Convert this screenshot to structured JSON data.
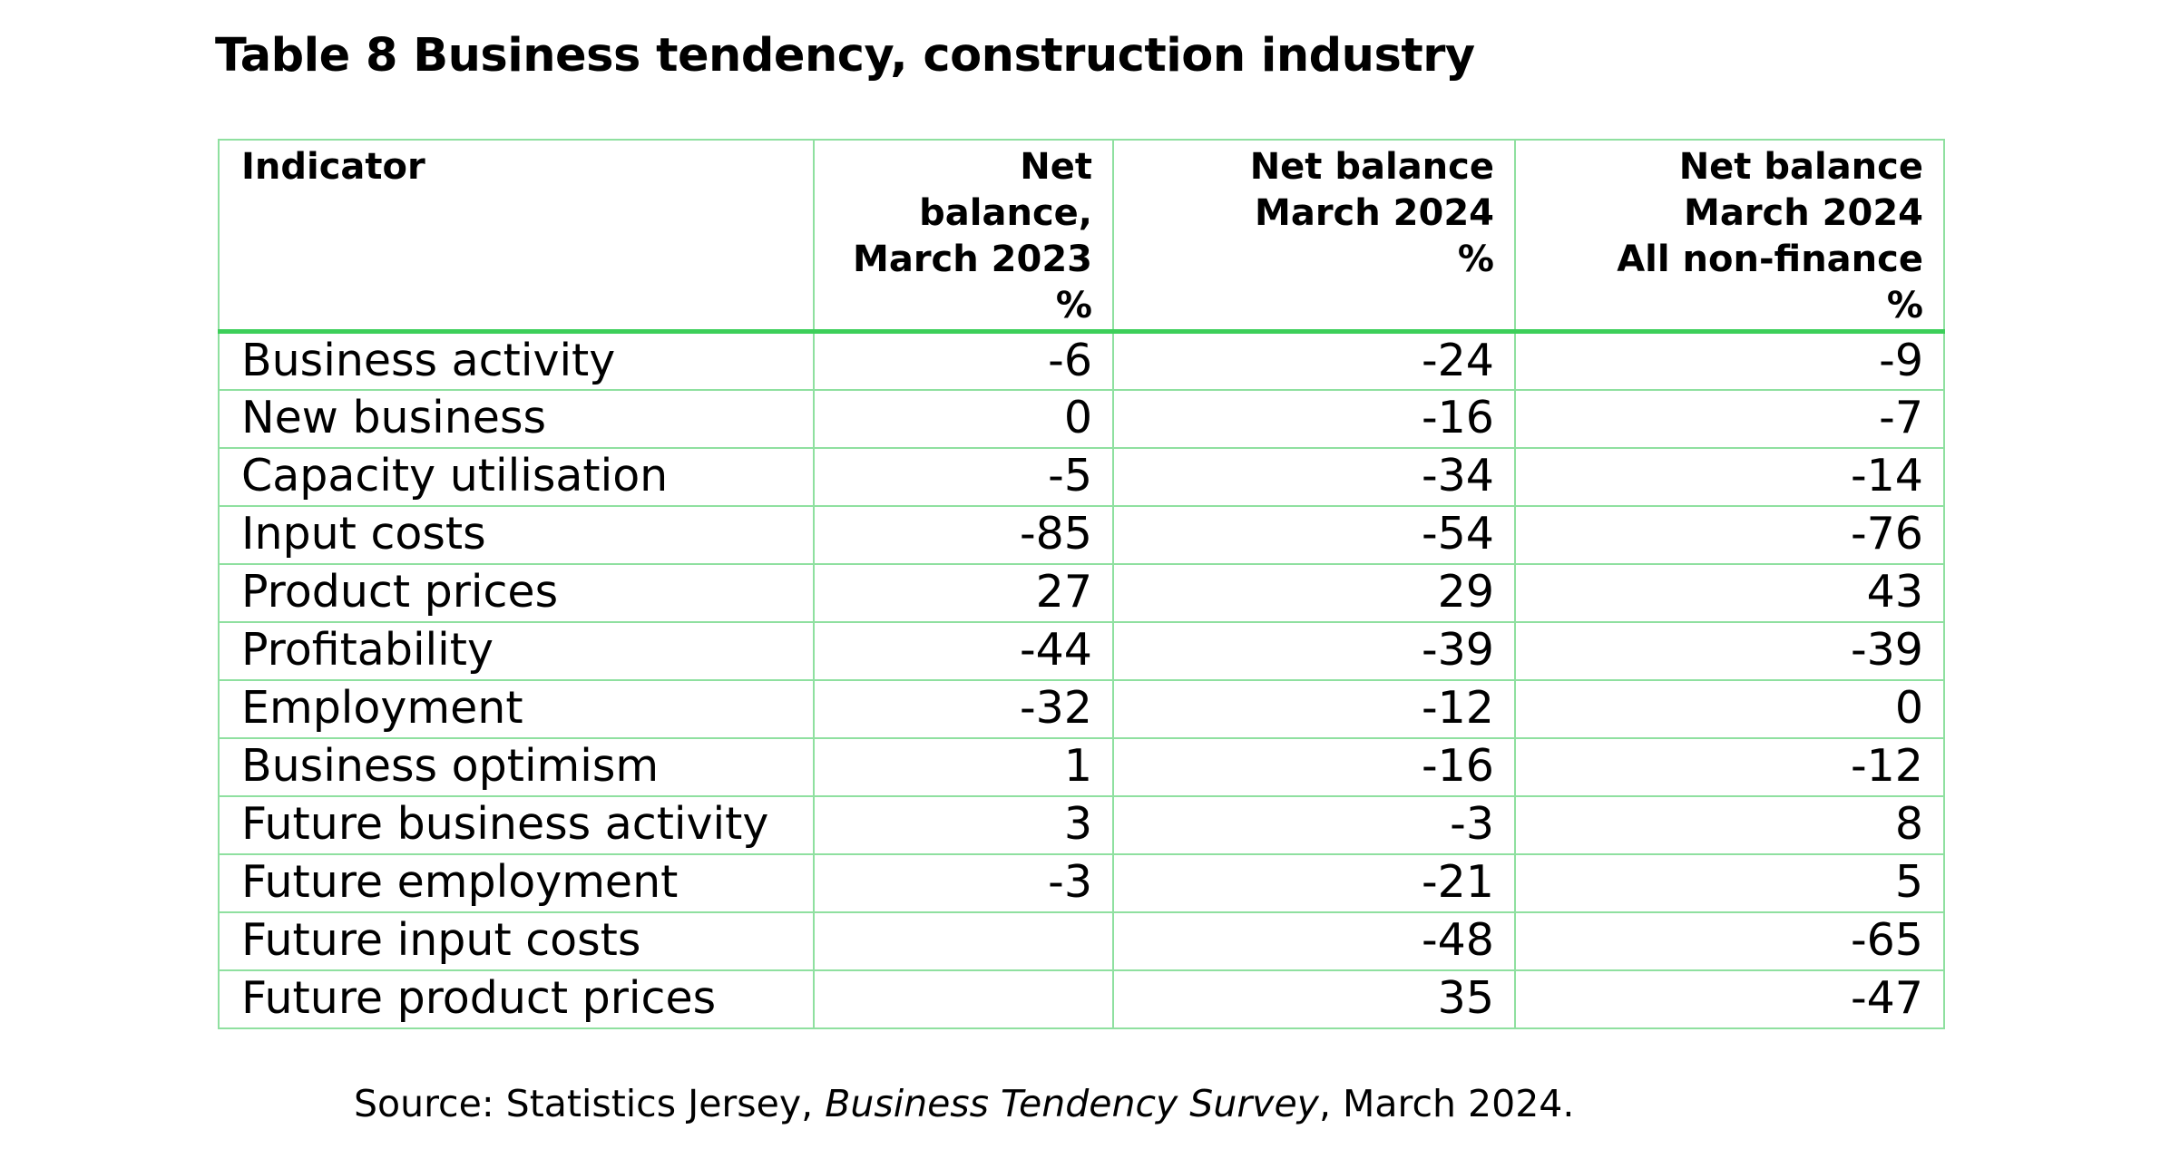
{
  "title": "Table 8 Business tendency, construction industry",
  "table": {
    "headers": [
      {
        "lines": [
          "Indicator"
        ]
      },
      {
        "lines": [
          "Net balance,",
          "March 2023",
          "%"
        ]
      },
      {
        "lines": [
          "Net balance",
          "March 2024",
          "%"
        ]
      },
      {
        "lines": [
          "Net balance",
          "March 2024",
          "All non-finance",
          "%"
        ]
      }
    ],
    "rows": [
      {
        "label": "Business activity",
        "values": [
          "-6",
          "-24",
          "-9"
        ]
      },
      {
        "label": "New business",
        "values": [
          "0",
          "-16",
          "-7"
        ]
      },
      {
        "label": "Capacity utilisation",
        "values": [
          "-5",
          "-34",
          "-14"
        ]
      },
      {
        "label": "Input costs",
        "values": [
          "-85",
          "-54",
          "-76"
        ]
      },
      {
        "label": "Product prices",
        "values": [
          "27",
          "29",
          "43"
        ]
      },
      {
        "label": "Profitability",
        "values": [
          "-44",
          "-39",
          "-39"
        ]
      },
      {
        "label": "Employment",
        "values": [
          "-32",
          "-12",
          "0"
        ]
      },
      {
        "label": "Business optimism",
        "values": [
          "1",
          "-16",
          "-12"
        ]
      },
      {
        "label": "Future business activity",
        "values": [
          "3",
          "-3",
          "8"
        ]
      },
      {
        "label": "Future employment",
        "values": [
          "-3",
          "-21",
          "5"
        ]
      },
      {
        "label": "Future input costs",
        "values": [
          "",
          "-48",
          "-65"
        ]
      },
      {
        "label": "Future product prices",
        "values": [
          "",
          "35",
          "-47"
        ]
      }
    ]
  },
  "source": {
    "prefix": "Source: Statistics Jersey, ",
    "publication": "Business Tendency Survey",
    "suffix": ", March 2024."
  },
  "colors": {
    "border": "#8fe0a0",
    "header_rule": "#3dcf5a"
  }
}
